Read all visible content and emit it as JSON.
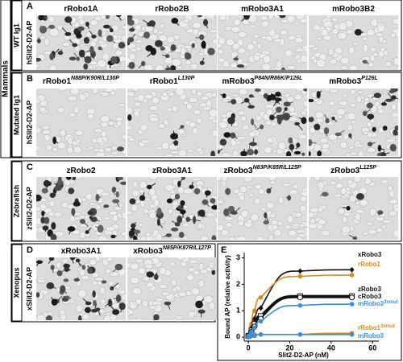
{
  "group_label": "Mammals",
  "rows": [
    {
      "letter": "A",
      "group": "WT Ig1",
      "ligand": "hSlit2-D2-AP",
      "images": [
        {
          "title": "rRobo1A"
        },
        {
          "title": "rRobo2B"
        },
        {
          "title": "mRobo3A1"
        },
        {
          "title": "mRobo3B2"
        }
      ]
    },
    {
      "letter": "B",
      "group": "Mutated Ig1",
      "ligand": "hSlit2-D2-AP",
      "images": [
        {
          "title": "rRobo1",
          "sup": "N88P/K90R/L130P"
        },
        {
          "title": "rRobo1",
          "sup": "L130P"
        },
        {
          "title": "mRobo3",
          "sup": "P84N/R86K/P126L"
        },
        {
          "title": "mRobo3",
          "sup": "P126L"
        }
      ]
    },
    {
      "letter": "C",
      "group": "Zebrafish",
      "ligand": "zSlit2-D2-AP",
      "images": [
        {
          "title": "zRobo2"
        },
        {
          "title": "zRobo3A1"
        },
        {
          "title": "zRobo3",
          "sup": "N83P/K85R/L125P"
        },
        {
          "title": "zRobo3",
          "sup": "L125P"
        }
      ]
    },
    {
      "letter": "D",
      "group": "Xenopus",
      "ligand": "xSlit2-D2-AP",
      "images": [
        {
          "title": "xRobo3A1"
        },
        {
          "title": "xRobo3",
          "sup": "N85P/K87R/L127P"
        }
      ]
    }
  ],
  "chart_data": {
    "type": "line",
    "letter": "E",
    "xlabel": "Slit2-D2-AP (nM)",
    "ylabel": "Bound AP (relative activity)",
    "x": [
      0,
      1.5,
      3,
      6,
      25,
      50
    ],
    "xlim": [
      -2,
      63
    ],
    "ylim": [
      -0.15,
      3.2
    ],
    "xticks": [
      0,
      20,
      40,
      60
    ],
    "yticks": [
      0,
      1,
      2,
      3
    ],
    "series": [
      {
        "name": "xRobo3",
        "color": "#111111",
        "marker": "diamond",
        "values": [
          0.05,
          0.4,
          0.7,
          1.1,
          2.5,
          2.55
        ]
      },
      {
        "name": "rRobo1",
        "color": "#d98a1a",
        "marker": "circle",
        "values": [
          0.05,
          0.5,
          1.0,
          1.5,
          2.3,
          2.35
        ]
      },
      {
        "name": "zRobo3",
        "color": "#111111",
        "marker": "square",
        "values": [
          0.05,
          0.25,
          0.5,
          0.8,
          1.55,
          1.55
        ]
      },
      {
        "name": "cRobo3",
        "color": "#111111",
        "marker": "circle-open",
        "values": [
          0.05,
          0.2,
          0.4,
          0.7,
          1.5,
          1.5
        ]
      },
      {
        "name": "mRobo3",
        "sup": "3xmut",
        "color": "#3a8ee0",
        "marker": "circle",
        "values": [
          0.05,
          0.2,
          0.35,
          0.6,
          1.2,
          1.25
        ]
      },
      {
        "name": "rRobo1",
        "sup": "3xmut",
        "color": "#d98a1a",
        "marker": "circle",
        "values": [
          0,
          0.05,
          0.1,
          0.1,
          0.1,
          0.15
        ]
      },
      {
        "name": "mRobo3",
        "color": "#3a8ee0",
        "marker": "circle",
        "values": [
          0,
          0.05,
          0.05,
          0.1,
          0.1,
          0.1
        ]
      }
    ]
  }
}
